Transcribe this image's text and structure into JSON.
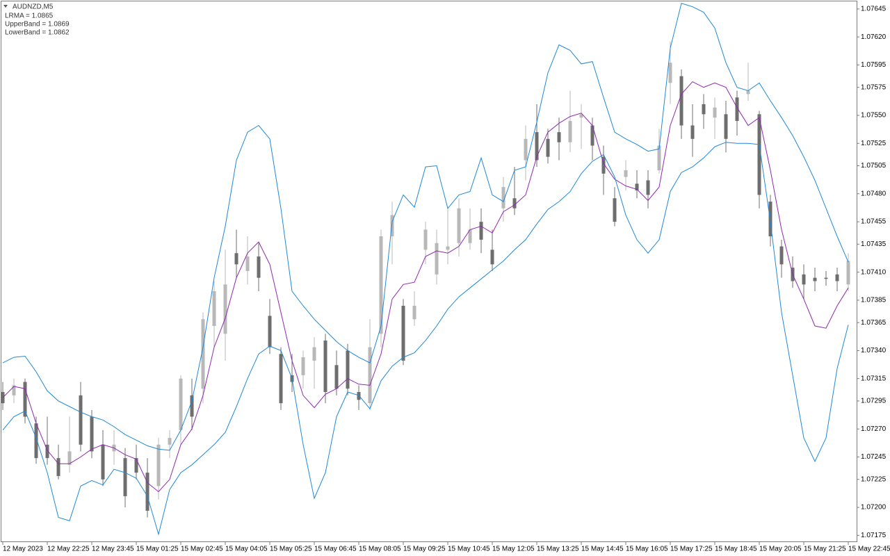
{
  "chart_data": {
    "type": "candlestick",
    "title": "AUDNZD,M5",
    "categories": [
      "12 May 2023",
      null,
      null,
      null,
      "12 May 22:25",
      null,
      null,
      null,
      "12 May 23:45",
      null,
      null,
      null,
      "15 May 01:25",
      null,
      null,
      null,
      "15 May 02:45",
      null,
      null,
      null,
      "15 May 04:05",
      null,
      null,
      null,
      "15 May 05:25",
      null,
      null,
      null,
      "15 May 06:45",
      null,
      null,
      null,
      "15 May 08:05",
      null,
      null,
      null,
      "15 May 09:25",
      null,
      null,
      null,
      "15 May 10:45",
      null,
      null,
      null,
      "15 May 12:05",
      null,
      null,
      null,
      "15 May 13:25",
      null,
      null,
      null,
      "15 May 14:45",
      null,
      null,
      null,
      "15 May 16:05",
      null,
      null,
      null,
      "15 May 17:25",
      null,
      null,
      null,
      "15 May 18:45",
      null,
      null,
      null,
      "15 May 20:05",
      null,
      null,
      null,
      "15 May 21:25",
      null,
      null,
      null,
      "15 May 22:45"
    ],
    "open": [
      1.07303,
      1.073,
      1.07312,
      1.07275,
      1.07256,
      1.07244,
      1.07238,
      1.073,
      1.07281,
      1.07256,
      1.0725,
      1.07244,
      1.07244,
      1.07231,
      1.07219,
      1.07256,
      1.07269,
      1.073,
      1.07306,
      1.07362,
      1.07355,
      1.07427,
      1.07411,
      1.07424,
      1.07371,
      1.07337,
      1.07318,
      1.07318,
      1.07331,
      1.07349,
      1.07327,
      1.0734,
      1.07303,
      1.07293,
      1.07355,
      1.07442,
      1.0738,
      1.07368,
      1.0743,
      1.07408,
      1.0743,
      1.07436,
      1.07436,
      1.07455,
      1.0743,
      1.07467,
      1.07476,
      1.0751,
      1.07535,
      1.07529,
      1.07535,
      1.07526,
      1.07548,
      1.07541,
      1.07513,
      1.07476,
      1.07495,
      1.07489,
      1.07492,
      1.07501,
      1.07579,
      1.07585,
      1.07541,
      1.0756,
      1.07548,
      1.07551,
      1.07566,
      1.07569,
      1.07551,
      1.07473,
      1.07433,
      1.07414,
      1.07408,
      1.07405,
      1.07405,
      1.07408,
      1.07399
    ],
    "high": [
      1.07312,
      1.07315,
      1.07315,
      1.07281,
      1.07281,
      1.07256,
      1.07281,
      1.07312,
      1.07287,
      1.07269,
      1.07269,
      1.07253,
      1.07256,
      1.07244,
      1.07262,
      1.07269,
      1.07318,
      1.07315,
      1.07374,
      1.07402,
      1.0743,
      1.07448,
      1.07442,
      1.07436,
      1.07386,
      1.07343,
      1.07337,
      1.0734,
      1.07352,
      1.07355,
      1.0734,
      1.07346,
      1.07309,
      1.07368,
      1.07448,
      1.07473,
      1.07386,
      1.07393,
      1.07455,
      1.07448,
      1.07467,
      1.07476,
      1.07467,
      1.07467,
      1.07448,
      1.07495,
      1.07504,
      1.07541,
      1.0756,
      1.07538,
      1.07548,
      1.07572,
      1.0756,
      1.07548,
      1.07523,
      1.07486,
      1.0751,
      1.07501,
      1.07501,
      1.07538,
      1.07616,
      1.07591,
      1.0756,
      1.07569,
      1.07566,
      1.07563,
      1.07572,
      1.07597,
      1.07554,
      1.07479,
      1.07439,
      1.07424,
      1.07417,
      1.07414,
      1.07411,
      1.07414,
      1.07427
    ],
    "low": [
      1.07287,
      1.07293,
      1.07275,
      1.07239,
      1.07238,
      1.07225,
      1.07231,
      1.0725,
      1.07244,
      1.07219,
      1.07238,
      1.072,
      1.07225,
      1.07191,
      1.07207,
      1.07244,
      1.07256,
      1.07269,
      1.07293,
      1.07343,
      1.07331,
      1.07405,
      1.07399,
      1.07393,
      1.07337,
      1.07287,
      1.07303,
      1.07306,
      1.07306,
      1.07293,
      1.073,
      1.073,
      1.07287,
      1.07287,
      1.07343,
      1.07417,
      1.07327,
      1.07362,
      1.07417,
      1.07399,
      1.07417,
      1.07424,
      1.0743,
      1.07427,
      1.07411,
      1.07455,
      1.07461,
      1.07492,
      1.07504,
      1.07507,
      1.0751,
      1.07517,
      1.0752,
      1.0751,
      1.07479,
      1.07451,
      1.07483,
      1.07476,
      1.07467,
      1.07498,
      1.0756,
      1.07529,
      1.07513,
      1.07538,
      1.07529,
      1.07517,
      1.07532,
      1.07563,
      1.07467,
      1.07433,
      1.07405,
      1.07396,
      1.07386,
      1.07393,
      1.07398,
      1.07393,
      1.07393
    ],
    "close": [
      1.07293,
      1.07309,
      1.07281,
      1.07244,
      1.07244,
      1.07228,
      1.0725,
      1.07256,
      1.0725,
      1.07225,
      1.07256,
      1.0721,
      1.07231,
      1.07197,
      1.07256,
      1.07262,
      1.07315,
      1.07281,
      1.07368,
      1.07393,
      1.07399,
      1.07417,
      1.07424,
      1.07405,
      1.07343,
      1.07293,
      1.07312,
      1.07334,
      1.07343,
      1.07303,
      1.07306,
      1.07306,
      1.07296,
      1.07343,
      1.07442,
      1.07461,
      1.07331,
      1.0738,
      1.07448,
      1.07436,
      1.07433,
      1.07467,
      1.07448,
      1.07439,
      1.07417,
      1.07486,
      1.07467,
      1.07529,
      1.0751,
      1.07513,
      1.07526,
      1.07545,
      1.07551,
      1.07523,
      1.07498,
      1.07455,
      1.07501,
      1.07483,
      1.07479,
      1.07523,
      1.07597,
      1.07541,
      1.07529,
      1.07551,
      1.07557,
      1.07529,
      1.07545,
      1.07572,
      1.07479,
      1.07442,
      1.07417,
      1.07402,
      1.07399,
      1.07402,
      1.07404,
      1.07402,
      1.0742
    ],
    "up_color": "#b8b8b8",
    "down_color": "#6e6e6e",
    "series": [
      {
        "name": "LRMA = 1.0865",
        "color": "#9027b0",
        "values": [
          1.07298,
          1.07308,
          1.07306,
          1.07275,
          1.07251,
          1.07239,
          1.07239,
          1.07245,
          1.07252,
          1.07256,
          1.07253,
          1.07247,
          1.07243,
          1.07222,
          1.07214,
          1.07225,
          1.07256,
          1.0727,
          1.073,
          1.07343,
          1.07369,
          1.07405,
          1.07427,
          1.07437,
          1.07417,
          1.07374,
          1.07331,
          1.073,
          1.07289,
          1.07301,
          1.07306,
          1.07315,
          1.0731,
          1.07309,
          1.07337,
          1.07386,
          1.07399,
          1.07401,
          1.07424,
          1.07429,
          1.07427,
          1.07433,
          1.07448,
          1.07451,
          1.07445,
          1.07464,
          1.0747,
          1.07479,
          1.07513,
          1.07535,
          1.07543,
          1.07549,
          1.07552,
          1.07541,
          1.07507,
          1.07493,
          1.07487,
          1.07484,
          1.07474,
          1.07486,
          1.07541,
          1.07569,
          1.0758,
          1.07575,
          1.07579,
          1.07575,
          1.07557,
          1.07541,
          1.07548,
          1.07501,
          1.07448,
          1.07408,
          1.07386,
          1.07362,
          1.0736,
          1.0738,
          1.07396
        ]
      },
      {
        "name": "UpperBand = 1.0869",
        "color": "#1e88d8",
        "values": [
          1.07329,
          1.07334,
          1.07335,
          1.07321,
          1.07304,
          1.07295,
          1.0729,
          1.07285,
          1.07281,
          1.07278,
          1.07272,
          1.07265,
          1.0726,
          1.07255,
          1.07252,
          1.07251,
          1.07269,
          1.07295,
          1.07343,
          1.07405,
          1.07451,
          1.0751,
          1.07535,
          1.07541,
          1.07529,
          1.07467,
          1.07393,
          1.0738,
          1.07368,
          1.07358,
          1.07348,
          1.0734,
          1.07334,
          1.07329,
          1.07362,
          1.07455,
          1.07479,
          1.07468,
          1.07504,
          1.07505,
          1.07467,
          1.07479,
          1.07482,
          1.07512,
          1.07479,
          1.07473,
          1.07501,
          1.07504,
          1.07544,
          1.07588,
          1.07613,
          1.07608,
          1.07596,
          1.07598,
          1.07566,
          1.07535,
          1.07529,
          1.07524,
          1.07518,
          1.0752,
          1.0761,
          1.0765,
          1.07647,
          1.07642,
          1.07628,
          1.07597,
          1.07575,
          1.07572,
          1.07579,
          1.07563,
          1.07548,
          1.07532,
          1.07513,
          1.07492,
          1.07467,
          1.07442,
          1.07419
        ]
      },
      {
        "name": "LowerBand = 1.0862",
        "color": "#1e88d8",
        "values": [
          1.07269,
          1.07281,
          1.07286,
          1.07262,
          1.07231,
          1.07191,
          1.07188,
          1.07219,
          1.07224,
          1.0722,
          1.07234,
          1.07231,
          1.07226,
          1.0721,
          1.07176,
          1.07216,
          1.07231,
          1.07238,
          1.07247,
          1.07256,
          1.07267,
          1.0729,
          1.07315,
          1.07337,
          1.07344,
          1.0734,
          1.07315,
          1.07256,
          1.07208,
          1.07231,
          1.07281,
          1.07303,
          1.073,
          1.07288,
          1.07313,
          1.07326,
          1.07334,
          1.07338,
          1.07349,
          1.07362,
          1.07377,
          1.07388,
          1.07396,
          1.07404,
          1.07412,
          1.0742,
          1.0743,
          1.07439,
          1.07453,
          1.07466,
          1.07473,
          1.07482,
          1.07498,
          1.07509,
          1.07515,
          1.07495,
          1.07461,
          1.07439,
          1.07427,
          1.07439,
          1.07482,
          1.07499,
          1.07504,
          1.07512,
          1.07522,
          1.07526,
          1.07525,
          1.07525,
          1.07524,
          1.07455,
          1.07374,
          1.07318,
          1.07262,
          1.07241,
          1.07262,
          1.07324,
          1.07363
        ]
      }
    ],
    "ylim": [
      1.07169,
      1.07653
    ],
    "yticks": [
      1.07645,
      {
        "value": 1.0762,
        "label": "1.07620"
      },
      1.07595,
      1.07575,
      {
        "value": 1.0755,
        "label": "1.07550"
      },
      1.07525,
      1.07505,
      {
        "value": 1.0748,
        "label": "1.07480"
      },
      1.07455,
      1.07435,
      {
        "value": 1.0741,
        "label": "1.07410"
      },
      1.07385,
      1.07365,
      {
        "value": 1.0734,
        "label": "1.07340"
      },
      1.07315,
      1.07295,
      {
        "value": 1.0727,
        "label": "1.07270"
      },
      1.07245,
      1.07225,
      {
        "value": 1.072,
        "label": "1.07200"
      },
      1.07175
    ],
    "grid": false
  }
}
